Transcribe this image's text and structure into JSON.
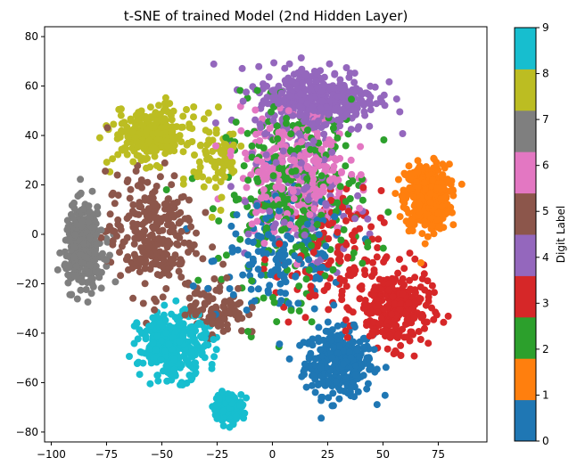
{
  "chart_data": {
    "type": "scatter",
    "title": "t-SNE of trained Model (2nd Hidden Layer)",
    "xlabel": "",
    "ylabel": "",
    "xlim": [
      -103,
      97
    ],
    "ylim": [
      -84,
      84
    ],
    "x_ticks": [
      -100,
      -75,
      -50,
      -25,
      0,
      25,
      50,
      75
    ],
    "y_ticks": [
      -80,
      -60,
      -40,
      -20,
      0,
      20,
      40,
      60,
      80
    ],
    "grid": false,
    "colorbar": {
      "label": "Digit Label",
      "range": [
        0,
        9
      ],
      "ticks": [
        0,
        1,
        2,
        3,
        4,
        5,
        6,
        7,
        8,
        9
      ],
      "colors": [
        "#1f77b4",
        "#ff7f0e",
        "#2ca02c",
        "#d62728",
        "#9467bd",
        "#8c564b",
        "#e377c2",
        "#7f7f7f",
        "#bcbd22",
        "#17becf"
      ]
    },
    "clusters": [
      {
        "label": 0,
        "center": [
          30,
          -52
        ],
        "spread": [
          14,
          12
        ],
        "count": 320
      },
      {
        "label": 0,
        "center": [
          5,
          -10
        ],
        "spread": [
          28,
          22
        ],
        "count": 160
      },
      {
        "label": 1,
        "center": [
          70,
          15
        ],
        "spread": [
          9,
          12
        ],
        "count": 420
      },
      {
        "label": 2,
        "center": [
          10,
          15
        ],
        "spread": [
          28,
          35
        ],
        "count": 300
      },
      {
        "label": 3,
        "center": [
          55,
          -30
        ],
        "spread": [
          15,
          14
        ],
        "count": 280
      },
      {
        "label": 3,
        "center": [
          25,
          -10
        ],
        "spread": [
          22,
          25
        ],
        "count": 120
      },
      {
        "label": 4,
        "center": [
          20,
          55
        ],
        "spread": [
          25,
          12
        ],
        "count": 380
      },
      {
        "label": 4,
        "center": [
          15,
          15
        ],
        "spread": [
          25,
          25
        ],
        "count": 100
      },
      {
        "label": 5,
        "center": [
          -55,
          0
        ],
        "spread": [
          18,
          22
        ],
        "count": 260
      },
      {
        "label": 5,
        "center": [
          -25,
          -30
        ],
        "spread": [
          12,
          10
        ],
        "count": 100
      },
      {
        "label": 6,
        "center": [
          10,
          25
        ],
        "spread": [
          22,
          22
        ],
        "count": 300
      },
      {
        "label": 7,
        "center": [
          -85,
          -5
        ],
        "spread": [
          8,
          15
        ],
        "count": 320
      },
      {
        "label": 8,
        "center": [
          -55,
          40
        ],
        "spread": [
          15,
          10
        ],
        "count": 260
      },
      {
        "label": 8,
        "center": [
          -25,
          30
        ],
        "spread": [
          10,
          15
        ],
        "count": 80
      },
      {
        "label": 9,
        "center": [
          -45,
          -45
        ],
        "spread": [
          14,
          12
        ],
        "count": 320
      },
      {
        "label": 9,
        "center": [
          -20,
          -70
        ],
        "spread": [
          6,
          5
        ],
        "count": 160
      }
    ]
  }
}
